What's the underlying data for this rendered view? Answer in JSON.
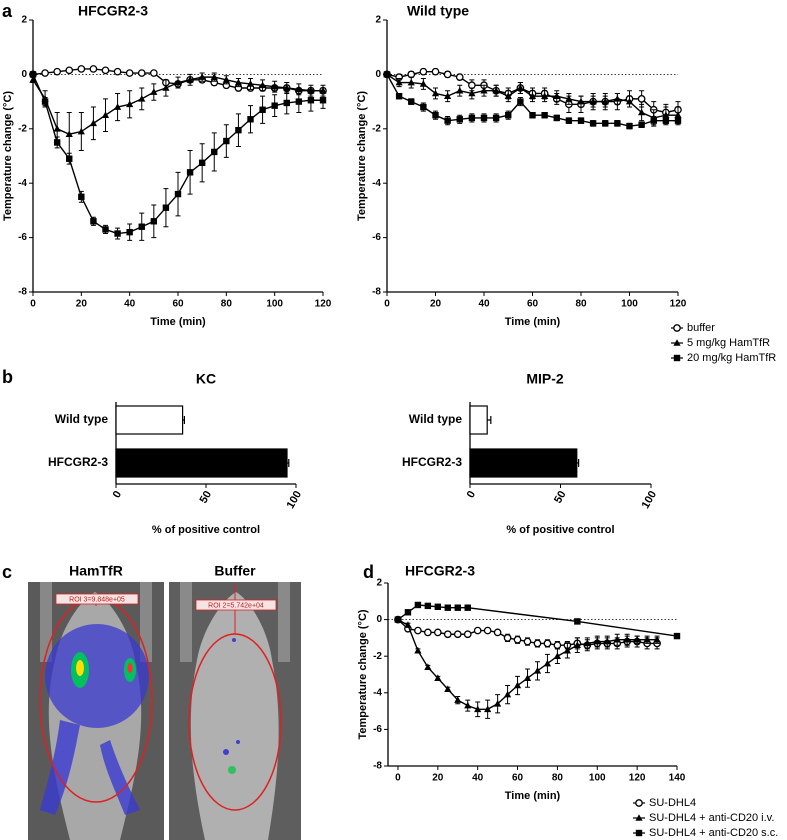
{
  "chart_data": [
    {
      "type": "line",
      "panel": "a",
      "title": "HFCGR2-3",
      "xlabel": "Time (min)",
      "ylabel": "Temperature change (°C)",
      "x": [
        0,
        5,
        10,
        15,
        20,
        25,
        30,
        35,
        40,
        45,
        50,
        55,
        60,
        65,
        70,
        75,
        80,
        85,
        90,
        95,
        100,
        105,
        110,
        115,
        120
      ],
      "xlim": [
        0,
        120
      ],
      "xticks": [
        0,
        20,
        40,
        60,
        80,
        100,
        120
      ],
      "ylim": [
        -8,
        2
      ],
      "yticks": [
        -8,
        -6,
        -4,
        -2,
        0,
        2
      ],
      "series": [
        {
          "name": "buffer",
          "color": "#000000",
          "marker": "circle",
          "values": [
            0,
            0.05,
            0.1,
            0.15,
            0.2,
            0.2,
            0.15,
            0.1,
            0.05,
            0.05,
            0.05,
            -0.3,
            -0.35,
            -0.2,
            -0.2,
            -0.3,
            -0.4,
            -0.5,
            -0.5,
            -0.5,
            -0.5,
            -0.5,
            -0.6,
            -0.6,
            -0.6
          ],
          "errors": [
            0,
            0.05,
            0.05,
            0.05,
            0.05,
            0.05,
            0.05,
            0.05,
            0.05,
            0.05,
            0.05,
            0.1,
            0.1,
            0.1,
            0.1,
            0.1,
            0.1,
            0.1,
            0.1,
            0.1,
            0.1,
            0.1,
            0.1,
            0.1,
            0.1
          ]
        },
        {
          "name": "5 mg/kg HamTfR",
          "color": "#000000",
          "marker": "triangle",
          "values": [
            -0.2,
            -0.9,
            -2.0,
            -2.2,
            -2.1,
            -1.8,
            -1.5,
            -1.2,
            -1.1,
            -0.9,
            -0.65,
            -0.5,
            -0.3,
            -0.2,
            -0.1,
            -0.1,
            -0.2,
            -0.3,
            -0.35,
            -0.4,
            -0.45,
            -0.5,
            -0.55,
            -0.6,
            -0.6
          ],
          "errors": [
            0.1,
            0.3,
            0.6,
            0.8,
            0.7,
            0.6,
            0.6,
            0.5,
            0.5,
            0.4,
            0.3,
            0.3,
            0.2,
            0.2,
            0.15,
            0.15,
            0.15,
            0.15,
            0.2,
            0.2,
            0.2,
            0.2,
            0.2,
            0.2,
            0.2
          ]
        },
        {
          "name": "20 mg/kg HamTfR",
          "color": "#000000",
          "marker": "square",
          "values": [
            0,
            -1.0,
            -2.5,
            -3.1,
            -4.5,
            -5.4,
            -5.7,
            -5.85,
            -5.8,
            -5.6,
            -5.4,
            -4.9,
            -4.4,
            -3.6,
            -3.25,
            -2.85,
            -2.45,
            -2.05,
            -1.65,
            -1.3,
            -1.15,
            -1.05,
            -1.0,
            -0.95,
            -0.95
          ],
          "errors": [
            0,
            0.15,
            0.2,
            0.2,
            0.2,
            0.15,
            0.15,
            0.2,
            0.3,
            0.5,
            0.6,
            0.7,
            0.8,
            0.8,
            0.7,
            0.7,
            0.6,
            0.6,
            0.5,
            0.5,
            0.4,
            0.4,
            0.4,
            0.4,
            0.3
          ]
        }
      ]
    },
    {
      "type": "line",
      "title": "Wild type",
      "xlabel": "Time (min)",
      "ylabel": "Temperature change (°C)",
      "x": [
        0,
        5,
        10,
        15,
        20,
        25,
        30,
        35,
        40,
        45,
        50,
        55,
        60,
        65,
        70,
        75,
        80,
        85,
        90,
        95,
        100,
        105,
        110,
        115,
        120
      ],
      "xlim": [
        0,
        120
      ],
      "xticks": [
        0,
        20,
        40,
        60,
        80,
        100,
        120
      ],
      "ylim": [
        -8,
        2
      ],
      "yticks": [
        -8,
        -6,
        -4,
        -2,
        0,
        2
      ],
      "series": [
        {
          "color": "#000000",
          "marker": "circle",
          "values": [
            0,
            -0.1,
            0.0,
            0.1,
            0.1,
            0.0,
            -0.1,
            -0.4,
            -0.4,
            -0.6,
            -0.7,
            -0.5,
            -0.7,
            -0.7,
            -0.9,
            -1.1,
            -1.1,
            -1.0,
            -1.0,
            -1.0,
            -0.9,
            -0.9,
            -1.3,
            -1.4,
            -1.3
          ],
          "errors": [
            0,
            0.1,
            0.1,
            0.1,
            0.1,
            0.1,
            0.1,
            0.2,
            0.2,
            0.2,
            0.2,
            0.2,
            0.2,
            0.2,
            0.2,
            0.3,
            0.3,
            0.3,
            0.3,
            0.3,
            0.3,
            0.3,
            0.3,
            0.3,
            0.3
          ]
        },
        {
          "color": "#000000",
          "marker": "triangle",
          "values": [
            0,
            -0.3,
            -0.3,
            -0.35,
            -0.7,
            -0.8,
            -0.6,
            -0.7,
            -0.6,
            -0.6,
            -0.8,
            -0.5,
            -0.8,
            -0.8,
            -0.8,
            -0.9,
            -1.0,
            -1.0,
            -1.0,
            -0.9,
            -1.0,
            -1.4,
            -1.6,
            -1.5,
            -1.5
          ],
          "errors": [
            0,
            0.15,
            0.2,
            0.2,
            0.2,
            0.2,
            0.2,
            0.2,
            0.2,
            0.2,
            0.2,
            0.2,
            0.2,
            0.2,
            0.2,
            0.2,
            0.2,
            0.2,
            0.2,
            0.2,
            0.2,
            0.3,
            0.3,
            0.3,
            0.3
          ]
        },
        {
          "color": "#000000",
          "marker": "square",
          "values": [
            0,
            -0.8,
            -1.0,
            -1.2,
            -1.5,
            -1.7,
            -1.65,
            -1.6,
            -1.6,
            -1.6,
            -1.5,
            -1.0,
            -1.5,
            -1.5,
            -1.6,
            -1.7,
            -1.7,
            -1.8,
            -1.8,
            -1.8,
            -1.9,
            -1.85,
            -1.7,
            -1.7,
            -1.7
          ],
          "errors": [
            0,
            0.1,
            0.1,
            0.15,
            0.15,
            0.15,
            0.15,
            0.15,
            0.15,
            0.15,
            0.15,
            0.15,
            0.1,
            0.1,
            0.1,
            0.1,
            0.1,
            0.1,
            0.1,
            0.1,
            0.1,
            0.1,
            0.15,
            0.15,
            0.15
          ]
        }
      ]
    },
    {
      "type": "hbar",
      "panel": "b",
      "title": "KC",
      "xlabel": "% of positive control",
      "categories": [
        "Wild type",
        "HFCGR2-3"
      ],
      "values": [
        37,
        95
      ],
      "errors": [
        1,
        1
      ],
      "colors": [
        "#ffffff",
        "#000000"
      ],
      "xlim": [
        0,
        100
      ],
      "xticks": [
        0,
        50,
        100
      ]
    },
    {
      "type": "hbar",
      "title": "MIP-2",
      "xlabel": "% of positive control",
      "categories": [
        "Wild type",
        "HFCGR2-3"
      ],
      "values": [
        9.5,
        59
      ],
      "errors": [
        2,
        1
      ],
      "colors": [
        "#ffffff",
        "#000000"
      ],
      "xlim": [
        0,
        100
      ],
      "xticks": [
        0,
        50,
        100
      ]
    },
    {
      "type": "line",
      "panel": "d",
      "title": "HFCGR2-3",
      "xlabel": "Time (min)",
      "ylabel": "Temperature change (°C)",
      "xlim": [
        -5,
        140
      ],
      "xticks": [
        0,
        20,
        40,
        60,
        80,
        100,
        120,
        140
      ],
      "ylim": [
        -8,
        2
      ],
      "yticks": [
        -8,
        -6,
        -4,
        -2,
        0,
        2
      ],
      "series": [
        {
          "name": "SU-DHL4",
          "color": "#000000",
          "marker": "circle",
          "x": [
            0,
            5,
            10,
            15,
            20,
            25,
            30,
            35,
            40,
            45,
            50,
            55,
            60,
            65,
            70,
            75,
            80,
            85,
            90,
            95,
            100,
            105,
            110,
            115,
            120,
            125,
            130
          ],
          "values": [
            0,
            -0.5,
            -0.6,
            -0.7,
            -0.7,
            -0.8,
            -0.8,
            -0.8,
            -0.6,
            -0.6,
            -0.7,
            -1.0,
            -1.1,
            -1.2,
            -1.3,
            -1.3,
            -1.4,
            -1.4,
            -1.3,
            -1.4,
            -1.3,
            -1.3,
            -1.3,
            -1.2,
            -1.2,
            -1.3,
            -1.3
          ],
          "errors": [
            0,
            0.1,
            0.1,
            0.1,
            0.1,
            0.1,
            0.1,
            0.1,
            0.1,
            0.1,
            0.1,
            0.2,
            0.2,
            0.2,
            0.2,
            0.2,
            0.2,
            0.2,
            0.3,
            0.3,
            0.3,
            0.3,
            0.3,
            0.3,
            0.3,
            0.3,
            0.3
          ]
        },
        {
          "name": "SU-DHL4 + anti-CD20 i.v.",
          "color": "#000000",
          "marker": "triangle",
          "x": [
            0,
            5,
            10,
            15,
            20,
            25,
            30,
            35,
            40,
            45,
            50,
            55,
            60,
            65,
            70,
            75,
            80,
            85,
            90,
            95,
            100,
            105,
            110,
            115,
            120,
            125,
            130
          ],
          "values": [
            0,
            -0.3,
            -1.7,
            -2.6,
            -3.2,
            -3.8,
            -4.4,
            -4.7,
            -4.9,
            -4.9,
            -4.6,
            -4.1,
            -3.6,
            -3.2,
            -2.8,
            -2.4,
            -2.0,
            -1.7,
            -1.4,
            -1.3,
            -1.2,
            -1.2,
            -1.1,
            -1.1,
            -1.1,
            -1.1,
            -1.1
          ],
          "errors": [
            0,
            0.1,
            0.1,
            0.1,
            0.1,
            0.1,
            0.2,
            0.3,
            0.4,
            0.5,
            0.5,
            0.5,
            0.5,
            0.5,
            0.5,
            0.5,
            0.4,
            0.4,
            0.4,
            0.3,
            0.3,
            0.3,
            0.3,
            0.3,
            0.2,
            0.2,
            0.2
          ]
        },
        {
          "name": "SU-DHL4 + anti-CD20 s.c.",
          "color": "#000000",
          "marker": "square",
          "x": [
            0,
            5,
            10,
            15,
            20,
            25,
            30,
            35,
            90,
            140
          ],
          "values": [
            0,
            0.4,
            0.8,
            0.75,
            0.7,
            0.65,
            0.65,
            0.65,
            -0.1,
            -0.9
          ],
          "errors": [
            0,
            0.1,
            0.1,
            0.1,
            0.1,
            0.1,
            0.1,
            0.1,
            0.1,
            0.1
          ]
        }
      ]
    }
  ],
  "image_panel": {
    "panel": "c",
    "titles": [
      "HamTfR",
      "Buffer"
    ],
    "roi_labels": [
      "ROI 3=9.848e+05",
      "ROI 2=5.742e+04"
    ]
  }
}
